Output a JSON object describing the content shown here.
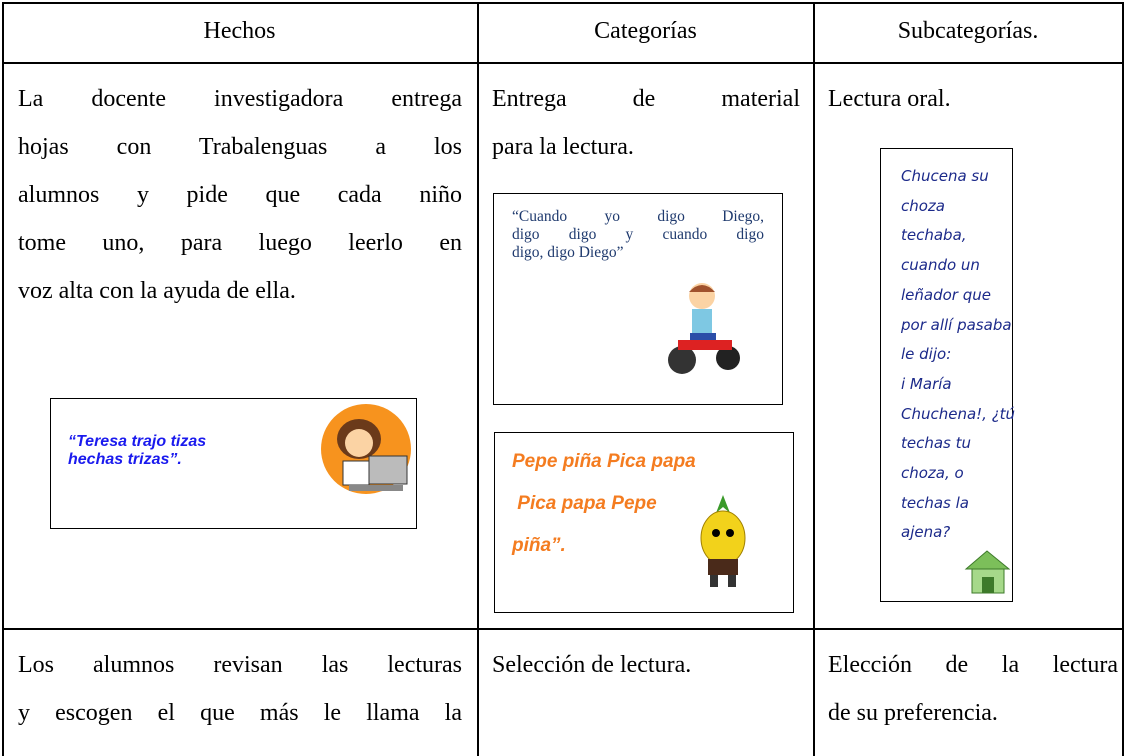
{
  "table": {
    "header": [
      "Hechos",
      "Categorías",
      "Subcategorías."
    ],
    "rows": [
      [
        {
          "lines": [
            "La docente investigadora entrega",
            "hojas con Trabalenguas a los",
            "alumnos y pide que cada niño",
            "tome uno, para luego leerlo en",
            "voz alta con la ayuda de ella."
          ],
          "box": [
            "“Teresa trajo tizas",
            "hechas trizas”."
          ]
        },
        {
          "lines": [
            "Entrega de material",
            "para la lectura."
          ],
          "box": [
            "“Cuando yo digo Diego,",
            "digo digo y cuando digo",
            "digo, digo Diego”"
          ],
          "box2": [
            "Pepe piña Pica papa",
            " Pica papa Pepe",
            "piña”."
          ]
        },
        {
          "lines": [
            "Lectura oral."
          ],
          "box": [
            "Chucena su",
            "choza",
            "techaba,",
            "cuando un",
            "leñador que",
            "por allí pasaba",
            "le dijo:",
            "i María",
            "Chuchena!, ¿tú",
            "techas tu",
            "choza, o",
            "techas la",
            "ajena?"
          ]
        }
      ],
      [
        {
          "lines": [
            "Los alumnos revisan las lecturas",
            "y escogen el que más le llama la"
          ]
        },
        {
          "lines": [
            "Selección de lectura."
          ]
        },
        {
          "lines": [
            "Elección de la lectura",
            "de su preferencia."
          ]
        }
      ]
    ]
  }
}
